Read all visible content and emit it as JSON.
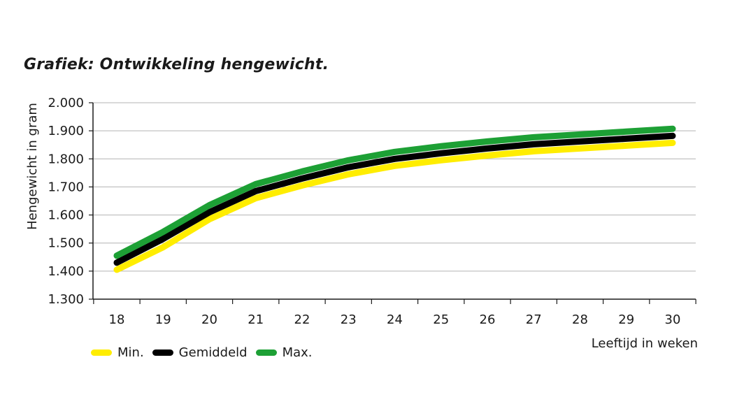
{
  "chart_data": {
    "type": "line",
    "title": "Grafiek: Ontwikkeling hengewicht.",
    "xlabel": "Leeftijd in weken",
    "ylabel": "Hengewicht in gram",
    "x": [
      18,
      19,
      20,
      21,
      22,
      23,
      24,
      25,
      26,
      27,
      28,
      29,
      30
    ],
    "x_tick_labels": [
      "18",
      "19",
      "20",
      "21",
      "22",
      "23",
      "24",
      "25",
      "26",
      "27",
      "28",
      "29",
      "30"
    ],
    "ylim": [
      1300,
      2000
    ],
    "y_ticks": [
      1300,
      1400,
      1500,
      1600,
      1700,
      1800,
      1900,
      2000
    ],
    "y_tick_labels": [
      "1.300",
      "1.400",
      "1.500",
      "1.600",
      "1.700",
      "1.800",
      "1.900",
      "2.000"
    ],
    "grid": true,
    "legend_position": "bottom-left",
    "series": [
      {
        "name": "Min.",
        "color": "#ffed00",
        "values": [
          1405,
          1485,
          1585,
          1660,
          1705,
          1745,
          1775,
          1795,
          1812,
          1827,
          1837,
          1847,
          1857
        ]
      },
      {
        "name": "Gemiddeld",
        "color": "#000000",
        "values": [
          1430,
          1515,
          1610,
          1685,
          1730,
          1770,
          1800,
          1820,
          1837,
          1852,
          1862,
          1872,
          1882
        ]
      },
      {
        "name": "Max.",
        "color": "#1da035",
        "values": [
          1455,
          1540,
          1635,
          1710,
          1755,
          1795,
          1825,
          1845,
          1862,
          1877,
          1887,
          1897,
          1907
        ]
      }
    ]
  }
}
